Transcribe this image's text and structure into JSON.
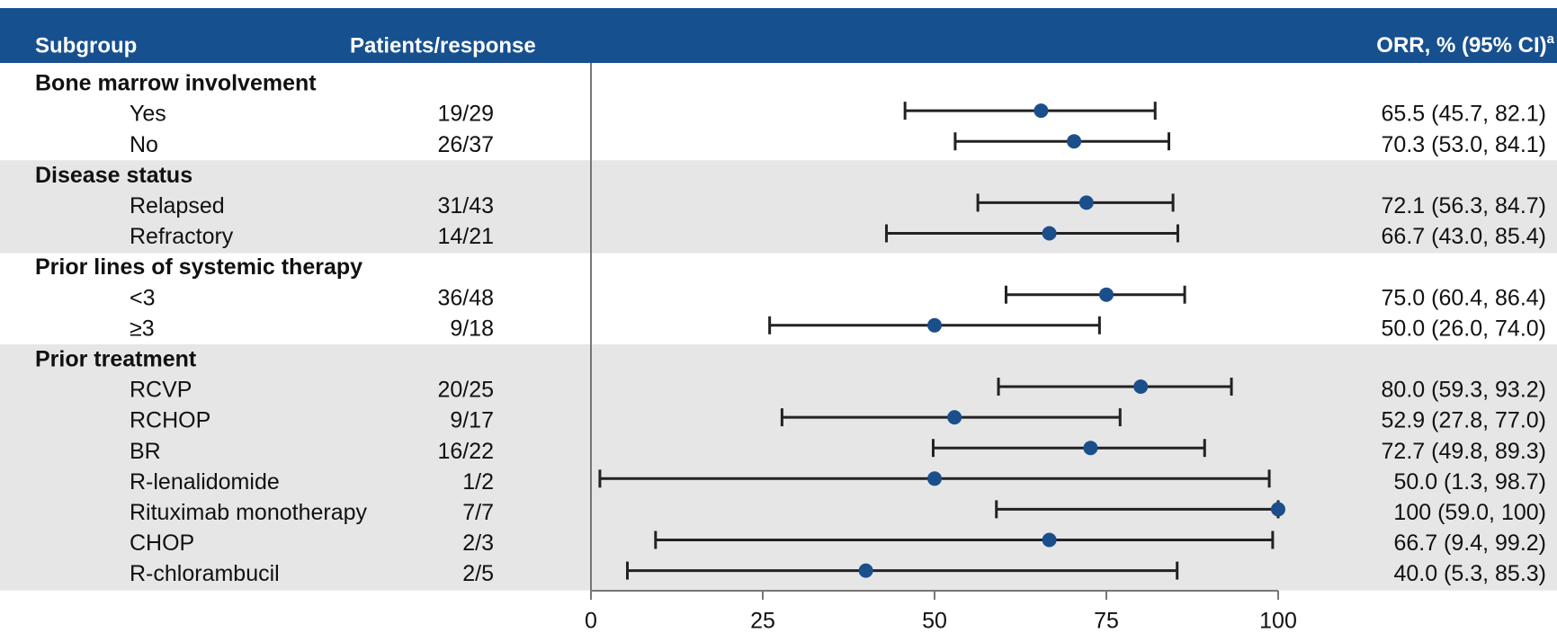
{
  "chart_data": {
    "type": "forest",
    "headers": {
      "subgroup": "Subgroup",
      "patients": "Patients/response",
      "orr": "ORR, % (95% CI)",
      "orr_marker": "a"
    },
    "groups": [
      {
        "name": "Bone marrow involvement",
        "rows": [
          {
            "label": "Yes",
            "patients": "19/29",
            "value": 65.5,
            "lower": 45.7,
            "upper": 82.1,
            "value_label": "65.5 (45.7, 82.1)"
          },
          {
            "label": "No",
            "patients": "26/37",
            "value": 70.3,
            "lower": 53.0,
            "upper": 84.1,
            "value_label": "70.3 (53.0, 84.1)"
          }
        ]
      },
      {
        "name": "Disease status",
        "rows": [
          {
            "label": "Relapsed",
            "patients": "31/43",
            "value": 72.1,
            "lower": 56.3,
            "upper": 84.7,
            "value_label": "72.1 (56.3, 84.7)"
          },
          {
            "label": "Refractory",
            "patients": "14/21",
            "value": 66.7,
            "lower": 43.0,
            "upper": 85.4,
            "value_label": "66.7 (43.0, 85.4)"
          }
        ]
      },
      {
        "name": "Prior lines of systemic therapy",
        "rows": [
          {
            "label": "<3",
            "patients": "36/48",
            "value": 75.0,
            "lower": 60.4,
            "upper": 86.4,
            "value_label": "75.0 (60.4, 86.4)"
          },
          {
            "label": "≥3",
            "patients": "9/18",
            "value": 50.0,
            "lower": 26.0,
            "upper": 74.0,
            "value_label": "50.0 (26.0, 74.0)"
          }
        ]
      },
      {
        "name": "Prior treatment",
        "rows": [
          {
            "label": "RCVP",
            "patients": "20/25",
            "value": 80.0,
            "lower": 59.3,
            "upper": 93.2,
            "value_label": "80.0 (59.3, 93.2)"
          },
          {
            "label": "RCHOP",
            "patients": "9/17",
            "value": 52.9,
            "lower": 27.8,
            "upper": 77.0,
            "value_label": "52.9 (27.8, 77.0)"
          },
          {
            "label": "BR",
            "patients": "16/22",
            "value": 72.7,
            "lower": 49.8,
            "upper": 89.3,
            "value_label": "72.7 (49.8, 89.3)"
          },
          {
            "label": "R-lenalidomide",
            "patients": "1/2",
            "value": 50.0,
            "lower": 1.3,
            "upper": 98.7,
            "value_label": "50.0 (1.3, 98.7)"
          },
          {
            "label": "Rituximab monotherapy",
            "patients": "7/7",
            "value": 100,
            "lower": 59.0,
            "upper": 100,
            "value_label": "100 (59.0, 100)"
          },
          {
            "label": "CHOP",
            "patients": "2/3",
            "value": 66.7,
            "lower": 9.4,
            "upper": 99.2,
            "value_label": "66.7 (9.4, 99.2)"
          },
          {
            "label": "R-chlorambucil",
            "patients": "2/5",
            "value": 40.0,
            "lower": 5.3,
            "upper": 85.3,
            "value_label": "40.0 (5.3, 85.3)"
          }
        ]
      }
    ],
    "xlim": [
      0,
      100
    ],
    "xticks": [
      0,
      25,
      50,
      75,
      100
    ],
    "color": "#1a4f8b",
    "header_color": "#17508f",
    "band_color": "#e6e6e6"
  }
}
